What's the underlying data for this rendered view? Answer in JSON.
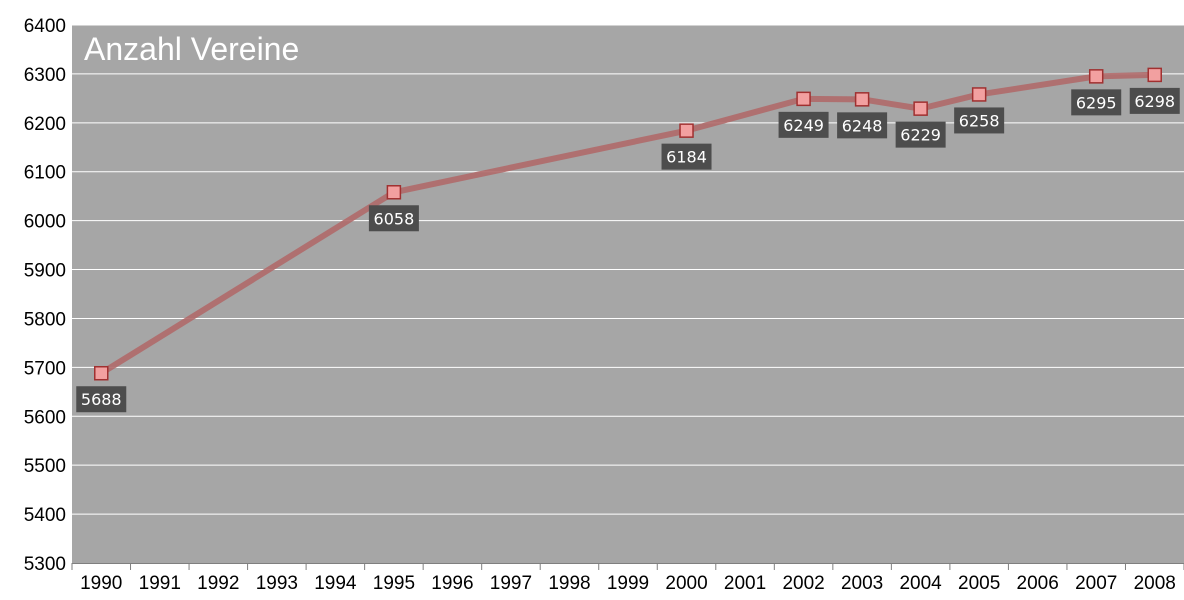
{
  "chart_data": {
    "type": "line",
    "title": "Anzahl Vereine",
    "xlabel": "",
    "ylabel": "",
    "categories": [
      "1990",
      "1991",
      "1992",
      "1993",
      "1994",
      "1995",
      "1996",
      "1997",
      "1998",
      "1999",
      "2000",
      "2001",
      "2002",
      "2003",
      "2004",
      "2005",
      "2006",
      "2007",
      "2008"
    ],
    "series": [
      {
        "points": [
          {
            "x": "1990",
            "y": 5688
          },
          {
            "x": "1995",
            "y": 6058
          },
          {
            "x": "2000",
            "y": 6184
          },
          {
            "x": "2002",
            "y": 6249
          },
          {
            "x": "2003",
            "y": 6248
          },
          {
            "x": "2004",
            "y": 6229
          },
          {
            "x": "2005",
            "y": 6258
          },
          {
            "x": "2007",
            "y": 6295
          },
          {
            "x": "2008",
            "y": 6298
          }
        ]
      }
    ],
    "ylim": [
      5300,
      6400
    ],
    "yticks": [
      5300,
      5400,
      5500,
      5600,
      5700,
      5800,
      5900,
      6000,
      6100,
      6200,
      6300,
      6400
    ],
    "grid": true,
    "legend": "none",
    "colors": {
      "plot_background": "#a6a6a6",
      "gridline": "#ffffff",
      "line": "#b06a6a",
      "marker_fill": "#f2a0a0",
      "marker_stroke": "#a03030",
      "label_background": "#4d4d4d",
      "label_text": "#ffffff",
      "title_text": "#ffffff"
    }
  }
}
